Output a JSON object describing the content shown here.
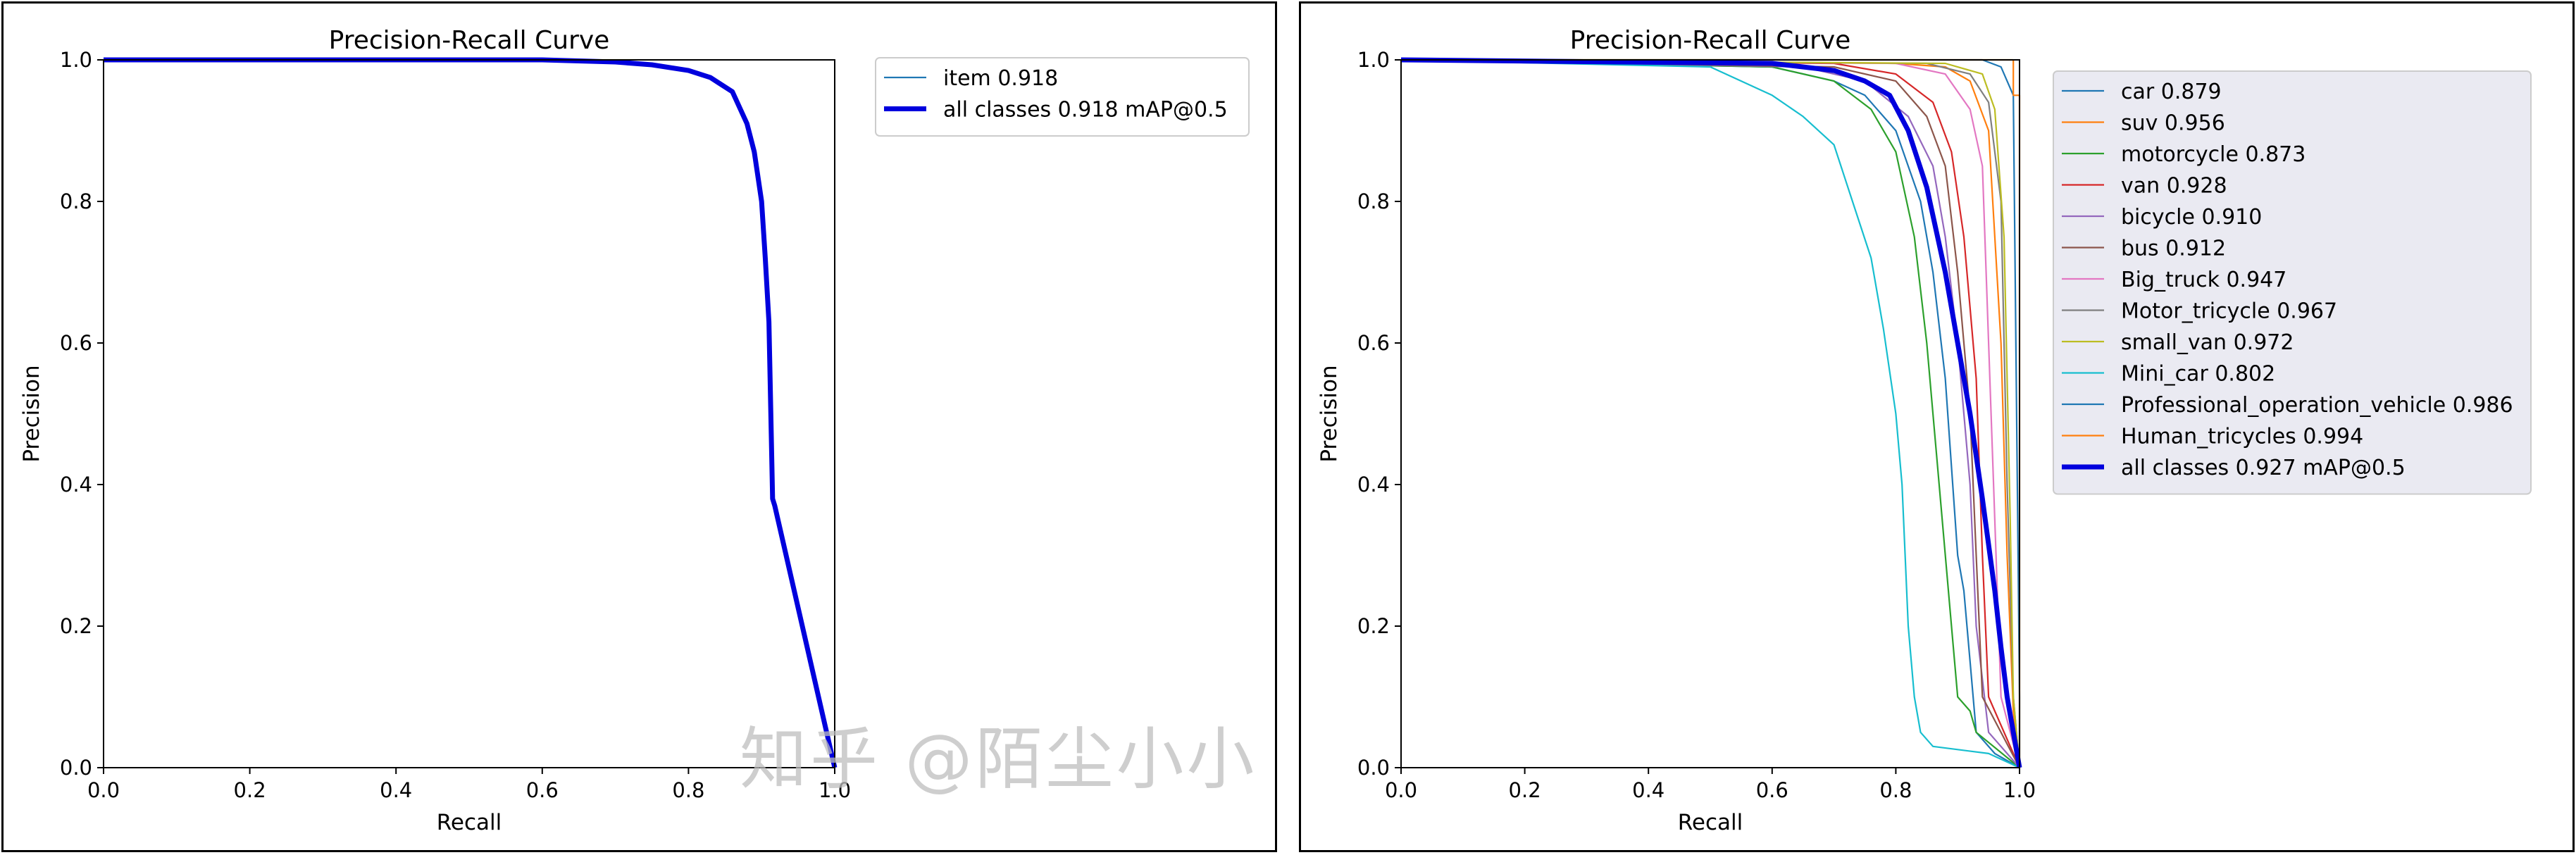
{
  "chart_data": [
    {
      "type": "line",
      "title": "Precision-Recall Curve",
      "xlabel": "Recall",
      "ylabel": "Precision",
      "xlim": [
        0,
        1
      ],
      "ylim": [
        0,
        1
      ],
      "xticks": [
        "0.0",
        "0.2",
        "0.4",
        "0.6",
        "0.8",
        "1.0"
      ],
      "yticks": [
        "0.0",
        "0.2",
        "0.4",
        "0.6",
        "0.8",
        "1.0"
      ],
      "grid": false,
      "legend_position": "outside-right",
      "series": [
        {
          "name": "item 0.918",
          "color": "#1f77b4",
          "width": "thin",
          "x": [
            0,
            0.6,
            0.7,
            0.75,
            0.8,
            0.83,
            0.86,
            0.88,
            0.89,
            0.9,
            0.905,
            0.91,
            0.915,
            0.918,
            1.0
          ],
          "y": [
            1.0,
            1.0,
            0.997,
            0.993,
            0.985,
            0.975,
            0.955,
            0.91,
            0.87,
            0.8,
            0.72,
            0.63,
            0.38,
            0.37,
            0.0
          ]
        },
        {
          "name": "all classes 0.918 mAP@0.5",
          "color": "#0000dd",
          "width": "thick",
          "x": [
            0,
            0.6,
            0.7,
            0.75,
            0.8,
            0.83,
            0.86,
            0.88,
            0.89,
            0.9,
            0.905,
            0.91,
            0.915,
            0.918,
            1.0
          ],
          "y": [
            1.0,
            1.0,
            0.997,
            0.993,
            0.985,
            0.975,
            0.955,
            0.91,
            0.87,
            0.8,
            0.72,
            0.63,
            0.38,
            0.37,
            0.0
          ]
        }
      ]
    },
    {
      "type": "line",
      "title": "Precision-Recall Curve",
      "xlabel": "Recall",
      "ylabel": "Precision",
      "xlim": [
        0,
        1
      ],
      "ylim": [
        0,
        1
      ],
      "xticks": [
        "0.0",
        "0.2",
        "0.4",
        "0.6",
        "0.8",
        "1.0"
      ],
      "yticks": [
        "0.0",
        "0.2",
        "0.4",
        "0.6",
        "0.8",
        "1.0"
      ],
      "grid": false,
      "legend_position": "outside-right",
      "series": [
        {
          "name": "car 0.879",
          "color": "#1f77b4",
          "width": "thin",
          "x": [
            0,
            0.6,
            0.7,
            0.75,
            0.8,
            0.84,
            0.86,
            0.88,
            0.9,
            0.91,
            0.92,
            0.93,
            0.96,
            1.0
          ],
          "y": [
            1.0,
            0.99,
            0.97,
            0.95,
            0.9,
            0.8,
            0.7,
            0.55,
            0.3,
            0.25,
            0.15,
            0.05,
            0.02,
            0.0
          ]
        },
        {
          "name": "suv 0.956",
          "color": "#ff7f0e",
          "width": "thin",
          "x": [
            0,
            0.8,
            0.88,
            0.92,
            0.95,
            0.97,
            0.98,
            0.99,
            1.0
          ],
          "y": [
            1.0,
            0.995,
            0.99,
            0.97,
            0.9,
            0.6,
            0.3,
            0.08,
            0.0
          ]
        },
        {
          "name": "motorcycle 0.873",
          "color": "#2ca02c",
          "width": "thin",
          "x": [
            0,
            0.6,
            0.7,
            0.76,
            0.8,
            0.83,
            0.85,
            0.87,
            0.89,
            0.9,
            0.92,
            0.93,
            1.0
          ],
          "y": [
            1.0,
            0.99,
            0.97,
            0.93,
            0.87,
            0.75,
            0.6,
            0.4,
            0.2,
            0.1,
            0.08,
            0.05,
            0.0
          ]
        },
        {
          "name": "van 0.928",
          "color": "#d62728",
          "width": "thin",
          "x": [
            0,
            0.7,
            0.8,
            0.86,
            0.89,
            0.91,
            0.93,
            0.94,
            0.95,
            1.0
          ],
          "y": [
            1.0,
            0.995,
            0.98,
            0.94,
            0.87,
            0.75,
            0.55,
            0.3,
            0.1,
            0.0
          ]
        },
        {
          "name": "bicycle 0.910",
          "color": "#9467bd",
          "width": "thin",
          "x": [
            0,
            0.65,
            0.75,
            0.82,
            0.86,
            0.88,
            0.9,
            0.92,
            0.93,
            0.95,
            1.0
          ],
          "y": [
            1.0,
            0.99,
            0.97,
            0.92,
            0.85,
            0.75,
            0.6,
            0.4,
            0.2,
            0.05,
            0.0
          ]
        },
        {
          "name": "bus 0.912",
          "color": "#8c564b",
          "width": "thin",
          "x": [
            0,
            0.7,
            0.8,
            0.85,
            0.88,
            0.9,
            0.92,
            0.93,
            0.94,
            1.0
          ],
          "y": [
            1.0,
            0.99,
            0.97,
            0.92,
            0.85,
            0.7,
            0.5,
            0.3,
            0.1,
            0.0
          ]
        },
        {
          "name": "Big_truck 0.947",
          "color": "#e377c2",
          "width": "thin",
          "x": [
            0,
            0.8,
            0.88,
            0.92,
            0.94,
            0.95,
            0.96,
            0.97,
            1.0
          ],
          "y": [
            1.0,
            0.995,
            0.98,
            0.93,
            0.85,
            0.6,
            0.35,
            0.1,
            0.0
          ]
        },
        {
          "name": "Motor_tricycle 0.967",
          "color": "#7f7f7f",
          "width": "thin",
          "x": [
            0,
            0.85,
            0.92,
            0.95,
            0.97,
            0.98,
            0.99,
            1.0
          ],
          "y": [
            1.0,
            0.995,
            0.98,
            0.94,
            0.8,
            0.4,
            0.1,
            0.0
          ]
        },
        {
          "name": "small_van 0.972",
          "color": "#bcbd22",
          "width": "thin",
          "x": [
            0,
            0.88,
            0.94,
            0.96,
            0.975,
            0.985,
            0.99,
            1.0
          ],
          "y": [
            1.0,
            0.995,
            0.98,
            0.93,
            0.75,
            0.35,
            0.1,
            0.0
          ]
        },
        {
          "name": "Mini_car 0.802",
          "color": "#17becf",
          "width": "thin",
          "x": [
            0,
            0.5,
            0.55,
            0.6,
            0.65,
            0.7,
            0.73,
            0.76,
            0.78,
            0.8,
            0.81,
            0.82,
            0.83,
            0.84,
            0.86,
            0.95,
            1.0
          ],
          "y": [
            1.0,
            0.99,
            0.97,
            0.95,
            0.92,
            0.88,
            0.8,
            0.72,
            0.62,
            0.5,
            0.4,
            0.2,
            0.1,
            0.05,
            0.03,
            0.02,
            0.0
          ]
        },
        {
          "name": "Professional_operation_vehicle 0.986",
          "color": "#1f77b4",
          "width": "thin",
          "x": [
            0,
            0.9,
            0.94,
            0.97,
            0.98,
            0.99,
            1.0,
            1.0
          ],
          "y": [
            1.0,
            1.0,
            1.0,
            0.99,
            0.97,
            0.95,
            0.1,
            0.0
          ]
        },
        {
          "name": "Human_tricycles 0.994",
          "color": "#ff7f0e",
          "width": "thin",
          "x": [
            0,
            0.98,
            0.99,
            0.99,
            1.0,
            1.0
          ],
          "y": [
            1.0,
            1.0,
            1.0,
            0.95,
            0.95,
            0.0
          ]
        },
        {
          "name": "all classes 0.927 mAP@0.5",
          "color": "#0000dd",
          "width": "thick",
          "x": [
            0,
            0.6,
            0.7,
            0.75,
            0.79,
            0.82,
            0.85,
            0.88,
            0.9,
            0.92,
            0.94,
            0.96,
            0.97,
            0.98,
            0.99,
            1.0
          ],
          "y": [
            1.0,
            0.995,
            0.985,
            0.97,
            0.95,
            0.9,
            0.82,
            0.7,
            0.6,
            0.5,
            0.38,
            0.25,
            0.17,
            0.1,
            0.05,
            0.0
          ]
        }
      ]
    }
  ],
  "watermark": "知乎 @陌尘小小"
}
